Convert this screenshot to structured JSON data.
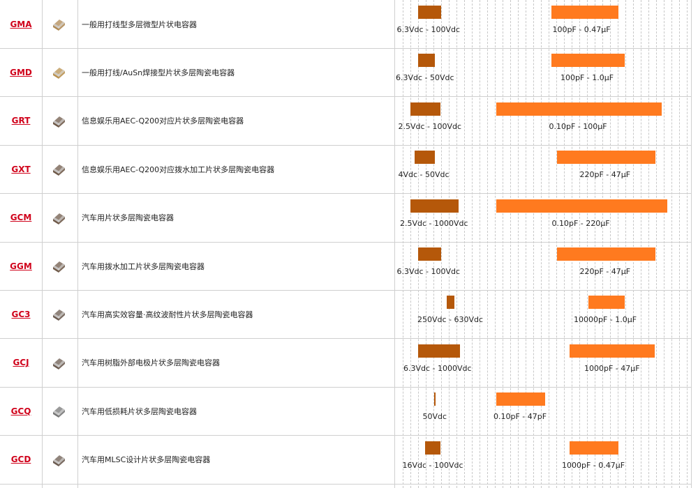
{
  "colors": {
    "voltage_bar": "#b5580a",
    "capacitance_bar": "#ff7a1f",
    "series_link": "#d0021b"
  },
  "rows": [
    {
      "series": "GMA",
      "description": "一般用打线型多层微型片状电容器",
      "voltage": "6.3Vdc - 100Vdc",
      "capacitance": "100pF - 0.47μF",
      "thumb_icon": "tan-chip-capacitor-icon",
      "thumb_color": "#b08a55"
    },
    {
      "series": "GMD",
      "description": "一般用打线/AuSn焊接型片状多层陶瓷电容器",
      "voltage": "6.3Vdc - 50Vdc",
      "capacitance": "100pF - 1.0μF",
      "thumb_icon": "tan-chip-capacitor-icon",
      "thumb_color": "#b9914f"
    },
    {
      "series": "GRT",
      "description": "信息娱乐用AEC-Q200对应片状多层陶瓷电容器",
      "voltage": "2.5Vdc - 100Vdc",
      "capacitance": "0.10pF - 100μF",
      "thumb_icon": "chip-capacitor-icon",
      "thumb_color": "#6f5a49"
    },
    {
      "series": "GXT",
      "description": "信息娱乐用AEC-Q200对应拨水加工片状多层陶瓷电容器",
      "voltage": "4Vdc - 50Vdc",
      "capacitance": "220pF - 47μF",
      "thumb_icon": "chip-capacitor-icon",
      "thumb_color": "#6f5a49"
    },
    {
      "series": "GCM",
      "description": "汽车用片状多层陶瓷电容器",
      "voltage": "2.5Vdc - 1000Vdc",
      "capacitance": "0.10pF - 220μF",
      "thumb_icon": "chip-capacitor-icon",
      "thumb_color": "#6f5a49"
    },
    {
      "series": "GGM",
      "description": "汽车用拨水加工片状多层陶瓷电容器",
      "voltage": "6.3Vdc - 100Vdc",
      "capacitance": "220pF - 47μF",
      "thumb_icon": "chip-capacitor-icon",
      "thumb_color": "#6f5a49"
    },
    {
      "series": "GC3",
      "description": "汽车用高实效容量·高纹波耐性片状多层陶瓷电容器",
      "voltage": "250Vdc - 630Vdc",
      "capacitance": "10000pF - 1.0μF",
      "thumb_icon": "chip-capacitor-icon",
      "thumb_color": "#6b5b50"
    },
    {
      "series": "GCJ",
      "description": "汽车用树脂外部电极片状多层陶瓷电容器",
      "voltage": "6.3Vdc - 1000Vdc",
      "capacitance": "1000pF - 47μF",
      "thumb_icon": "chip-capacitor-icon",
      "thumb_color": "#6b5b50"
    },
    {
      "series": "GCQ",
      "description": "汽车用低损耗片状多层陶瓷电容器",
      "voltage": "50Vdc",
      "capacitance": "0.10pF - 47pF",
      "thumb_icon": "grey-chip-capacitor-icon",
      "thumb_color": "#777777"
    },
    {
      "series": "GCD",
      "description": "汽车用MLSC设计片状多层陶瓷电容器",
      "voltage": "16Vdc - 100Vdc",
      "capacitance": "1000pF - 0.47μF",
      "thumb_icon": "chip-capacitor-icon",
      "thumb_color": "#6b5b50"
    }
  ]
}
